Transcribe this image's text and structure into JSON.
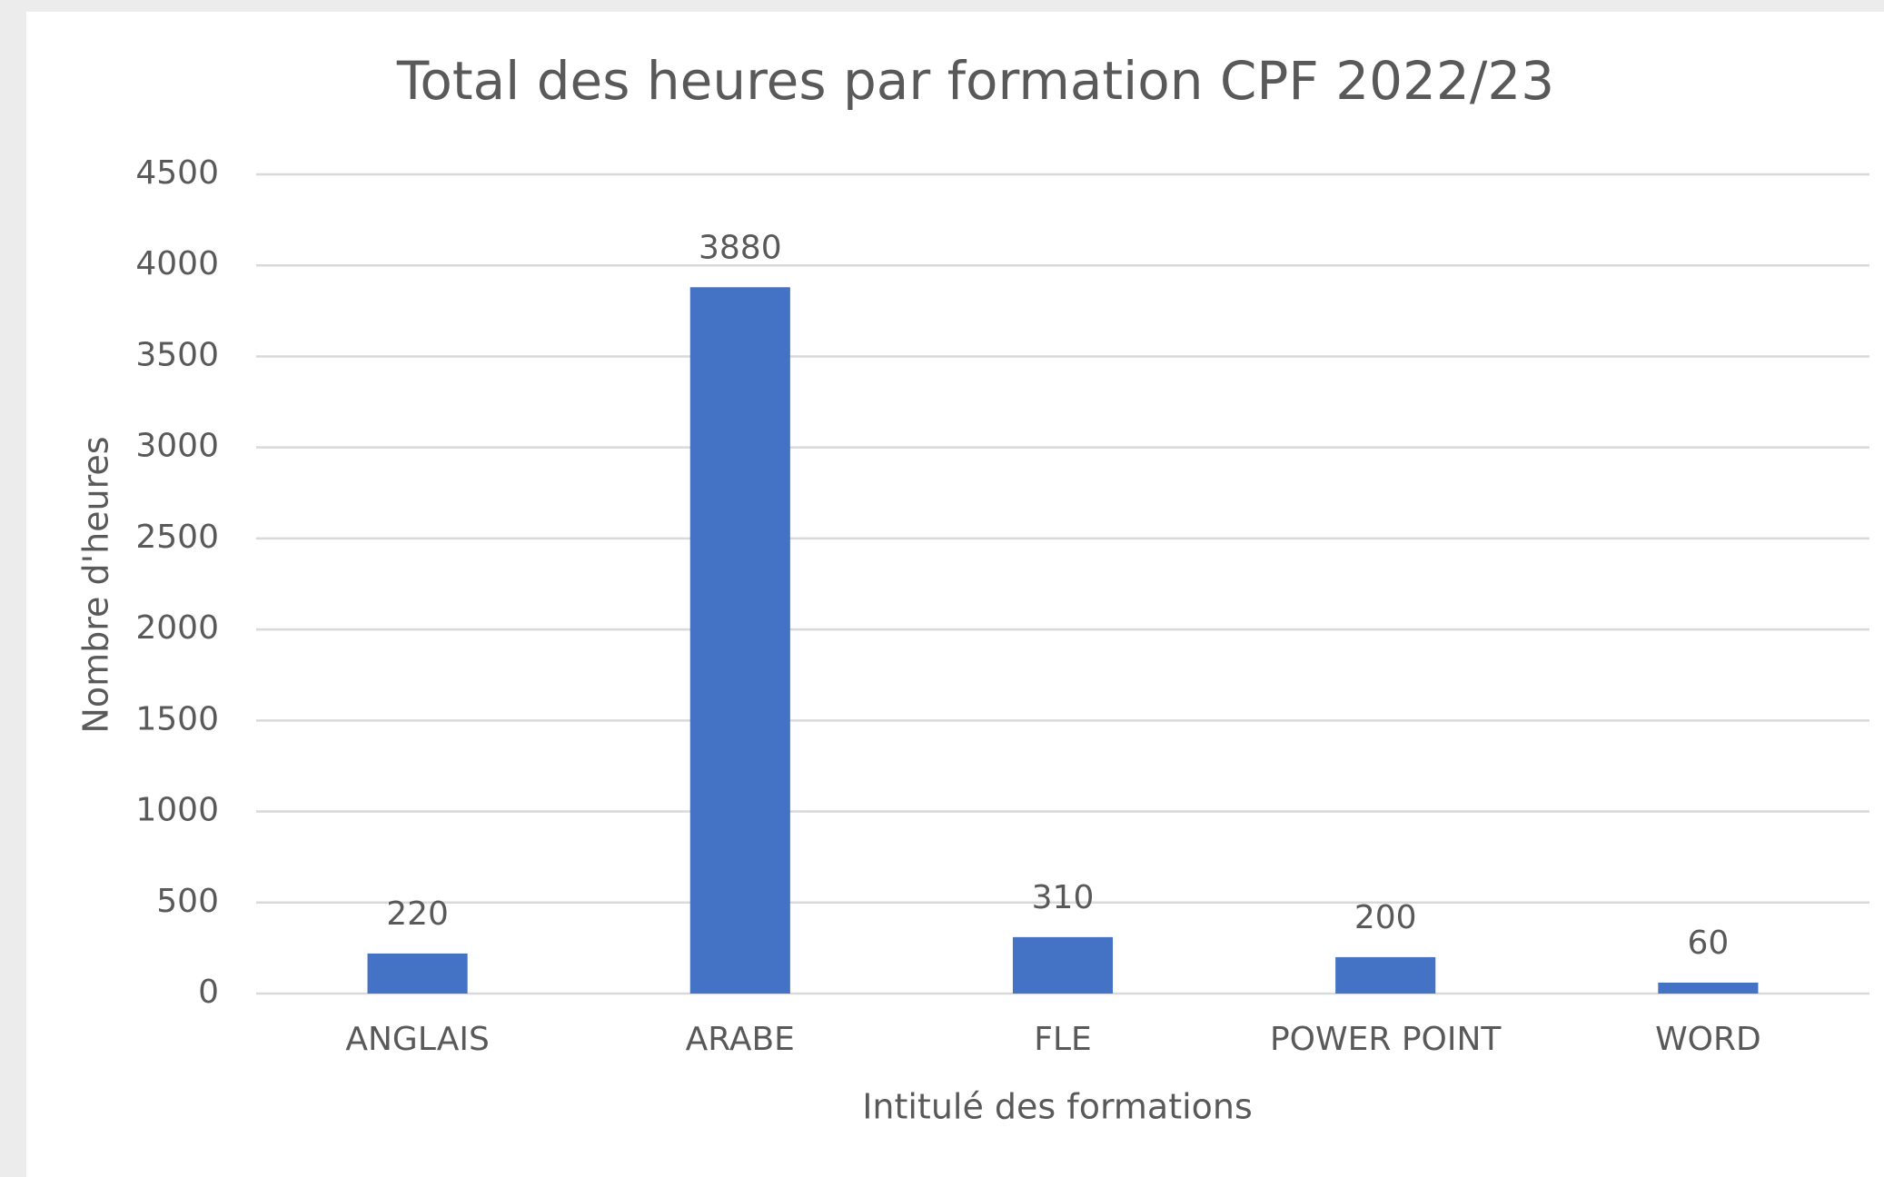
{
  "chart_data": {
    "type": "bar",
    "title": "Total des heures par formation CPF 2022/23",
    "categories": [
      "ANGLAIS",
      "ARABE",
      "FLE",
      "POWER POINT",
      "WORD"
    ],
    "values": [
      220,
      3880,
      310,
      200,
      60
    ],
    "color": "#4472c4",
    "xlabel": "Intitulé des formations",
    "ylabel": "Nombre d'heures",
    "ylim": [
      0,
      4500
    ],
    "yticks": [
      0,
      500,
      1000,
      1500,
      2000,
      2500,
      3000,
      3500,
      4000,
      4500
    ],
    "grid": true
  }
}
